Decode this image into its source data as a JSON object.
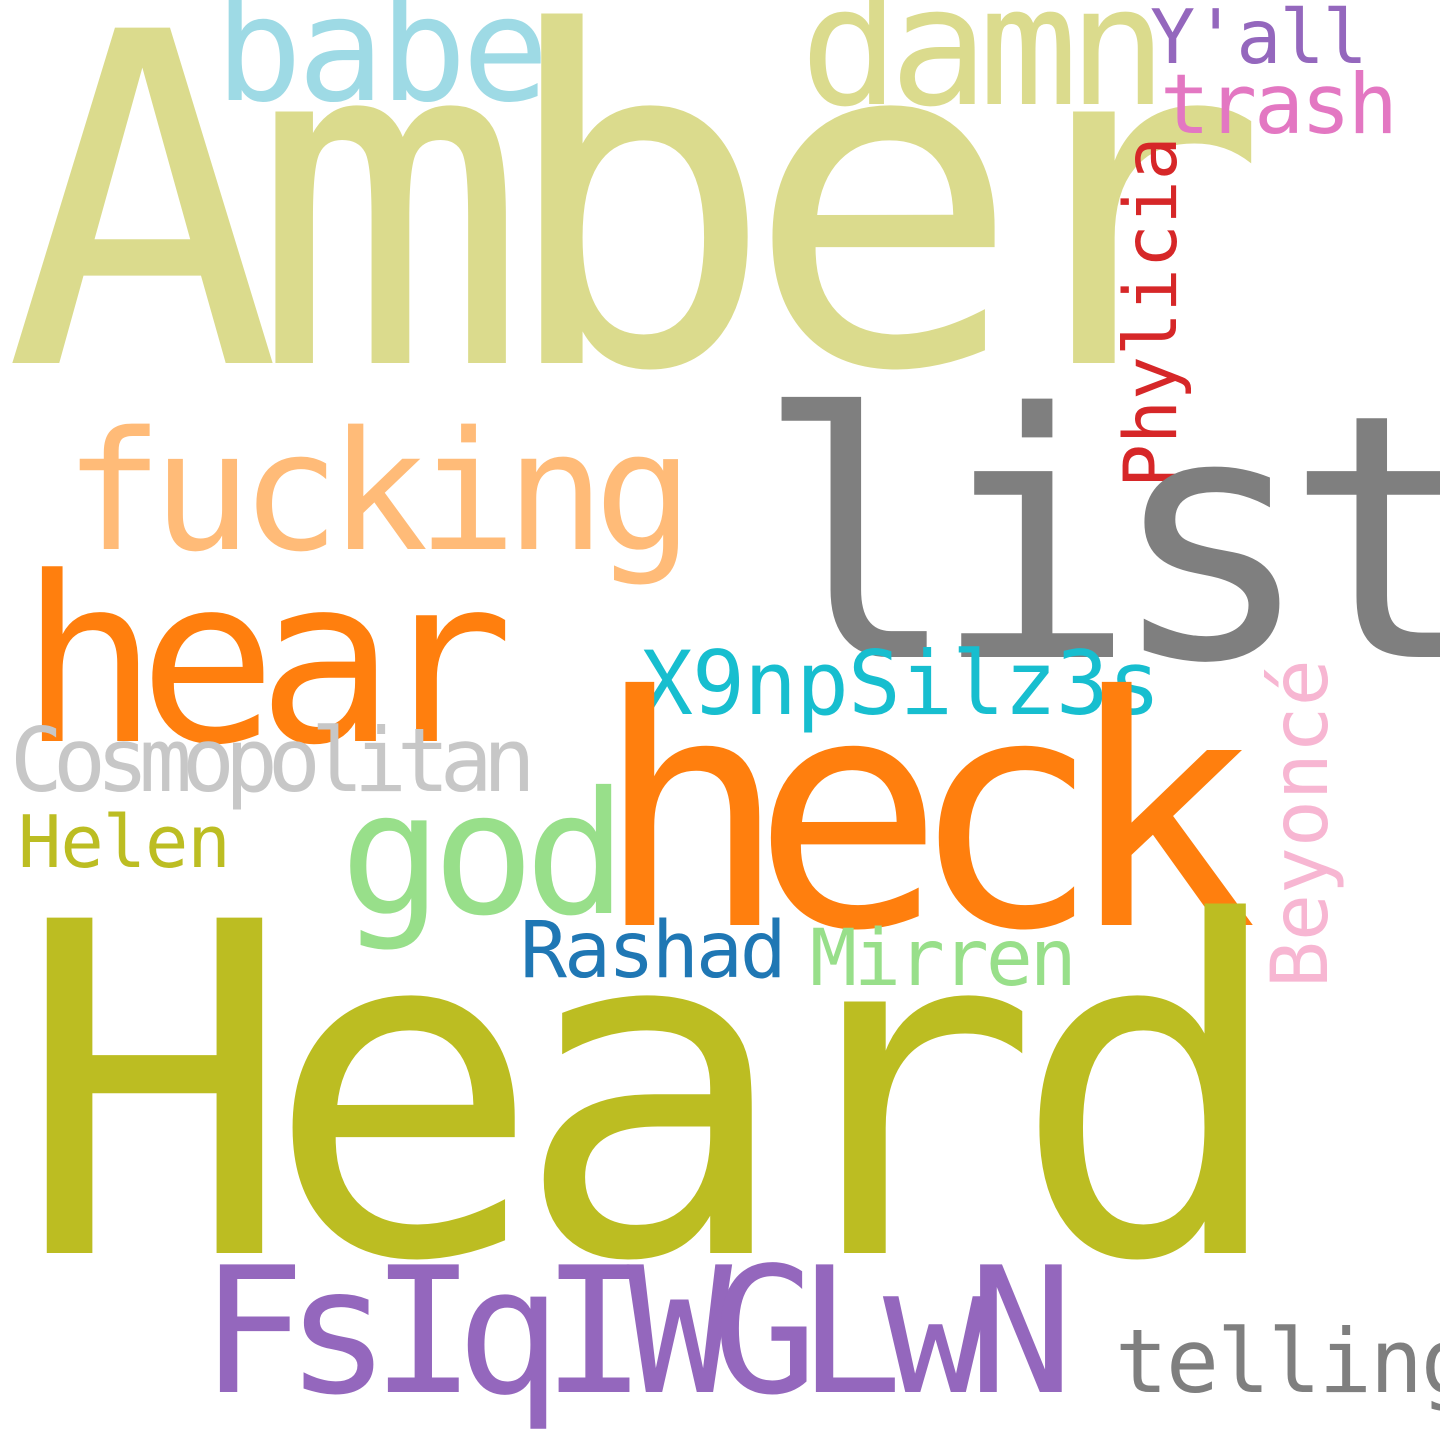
{
  "words": {
    "amber": {
      "text": "Amber",
      "color": "#dbdb8d"
    },
    "heard": {
      "text": "Heard",
      "color": "#bcbd22"
    },
    "list": {
      "text": "list",
      "color": "#7f7f7f"
    },
    "heck": {
      "text": "heck",
      "color": "#ff7f0e"
    },
    "hear": {
      "text": "hear",
      "color": "#ff7f0e"
    },
    "fucking": {
      "text": "fucking",
      "color": "#ffbb78"
    },
    "babe": {
      "text": "babe",
      "color": "#9edae5"
    },
    "damn": {
      "text": "damn",
      "color": "#dbdb8d"
    },
    "yall": {
      "text": "Y'all",
      "color": "#9467bd"
    },
    "trash": {
      "text": "trash",
      "color": "#e377c2"
    },
    "phylicia": {
      "text": "Phylicia",
      "color": "#d62728"
    },
    "god": {
      "text": "god",
      "color": "#98df8a"
    },
    "x9np": {
      "text": "X9npSilz3s",
      "color": "#17becf"
    },
    "cosmopolitan": {
      "text": "Cosmopolitan",
      "color": "#c7c7c7"
    },
    "helen": {
      "text": "Helen",
      "color": "#bcbd22"
    },
    "beyonce": {
      "text": "Beyoncé",
      "color": "#f7b6d2"
    },
    "rashad": {
      "text": "Rashad",
      "color": "#1f77b4"
    },
    "mirren": {
      "text": "Mirren",
      "color": "#98df8a"
    },
    "fsiq": {
      "text": "FsIqIWGLwN",
      "color": "#9467bd"
    },
    "telling": {
      "text": "telling",
      "color": "#7f7f7f"
    }
  }
}
